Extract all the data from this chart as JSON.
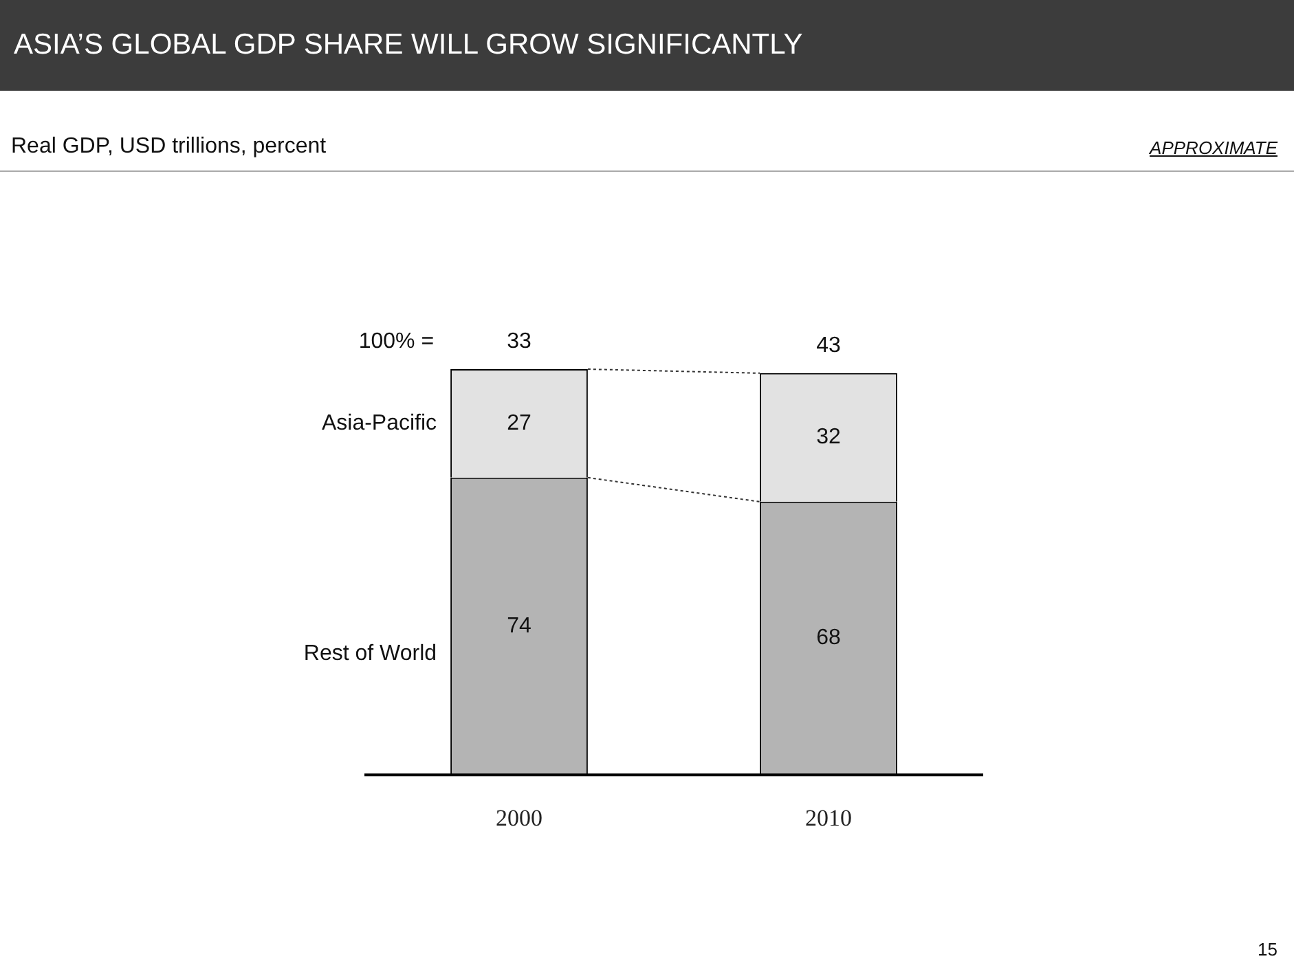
{
  "chart_data": {
    "type": "bar",
    "title": "ASIA’S GLOBAL GDP SHARE WILL GROW SIGNIFICANTLY",
    "subtitle": "Real GDP, USD trillions, percent",
    "categories": [
      "2000",
      "2010"
    ],
    "stacked": true,
    "tick_labels": "x",
    "data_labels": true,
    "series": [
      {
        "name": "Rest of World",
        "color": "#b4b4b4",
        "values": [
          74,
          68
        ]
      },
      {
        "name": "Asia-Pacific",
        "color": "#e2e2e2",
        "values": [
          27,
          32
        ]
      }
    ],
    "annotations": [
      "100% =",
      "33",
      "43",
      "APPROXIMATE",
      "15"
    ]
  }
}
